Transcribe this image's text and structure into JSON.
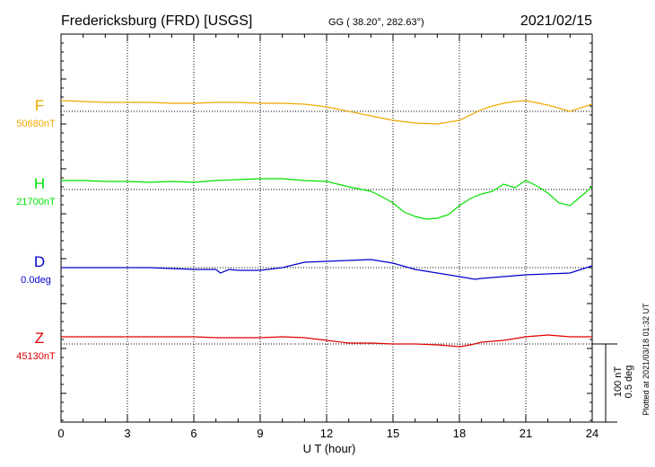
{
  "chart_data": {
    "type": "line",
    "title": "Fredericksburg (FRD)  [USGS]",
    "coords": "GG ( 38.20°, 282.63°)",
    "date": "2021/02/15",
    "xlabel": "U T (hour)",
    "xlim": [
      0,
      24
    ],
    "xticks": [
      "0",
      "3",
      "6",
      "9",
      "12",
      "15",
      "18",
      "21",
      "24"
    ],
    "scale_labels": [
      "100 nT",
      "0.5 deg"
    ],
    "plotted_note": "Plotted at 2021/03/18 01:32 UT",
    "grid": true,
    "series": [
      {
        "name": "F",
        "baseline_label": "50680nT",
        "color": "#f0a800",
        "x": [
          0,
          1,
          2,
          3,
          4,
          5,
          6,
          7,
          8,
          9,
          10,
          11,
          12,
          13,
          14,
          15,
          16,
          17,
          18,
          19,
          19.5,
          20,
          20.5,
          21,
          22,
          23,
          24
        ],
        "y": [
          12,
          11,
          10,
          10,
          10,
          9,
          9,
          10,
          10,
          9,
          9,
          8,
          5,
          0,
          -5,
          -10,
          -13,
          -14,
          -10,
          2,
          6,
          9,
          11,
          12,
          7,
          0,
          8
        ]
      },
      {
        "name": "H",
        "baseline_label": "21700nT",
        "color": "#00e000",
        "x": [
          0,
          1,
          2,
          3,
          4,
          5,
          6,
          7,
          8,
          9,
          10,
          11,
          12,
          13,
          14,
          14.5,
          15,
          15.5,
          16,
          16.5,
          17,
          17.5,
          18,
          18.5,
          19,
          19.5,
          20,
          20.5,
          21,
          21.5,
          22,
          22.5,
          23,
          24
        ],
        "y": [
          10,
          10,
          9,
          9,
          8,
          9,
          8,
          10,
          11,
          12,
          12,
          10,
          9,
          3,
          -2,
          -8,
          -15,
          -25,
          -30,
          -33,
          -32,
          -28,
          -18,
          -10,
          -5,
          -2,
          6,
          2,
          10,
          4,
          -4,
          -15,
          -18,
          3
        ]
      },
      {
        "name": "D",
        "baseline_label": "0.0deg",
        "color": "#0000d0",
        "x": [
          0,
          1,
          2,
          3,
          4,
          5,
          6,
          7,
          7.2,
          7.6,
          8,
          9,
          10,
          11,
          12,
          13,
          14,
          15,
          16,
          17,
          18,
          18.7,
          19,
          20,
          21,
          22,
          23,
          24
        ],
        "y": [
          0,
          0,
          0,
          0,
          0,
          -1,
          -2,
          -2,
          -6,
          -2,
          -3,
          -3,
          0,
          6,
          7,
          8,
          9,
          5,
          -2,
          -6,
          -10,
          -13,
          -12,
          -10,
          -8,
          -7,
          -6,
          2
        ]
      },
      {
        "name": "Z",
        "baseline_label": "45130nT",
        "color": "#e00000",
        "x": [
          0,
          1,
          2,
          3,
          4,
          5,
          6,
          7,
          8,
          9,
          10,
          11,
          12,
          13,
          14,
          15,
          16,
          17,
          18,
          18.5,
          19,
          20,
          21,
          22,
          23,
          24
        ],
        "y": [
          8,
          8,
          8,
          8,
          8,
          8,
          8,
          7,
          7,
          7,
          8,
          7,
          4,
          1,
          1,
          0,
          0,
          -1,
          -3,
          -1,
          2,
          4,
          8,
          10,
          8,
          8
        ]
      }
    ]
  }
}
